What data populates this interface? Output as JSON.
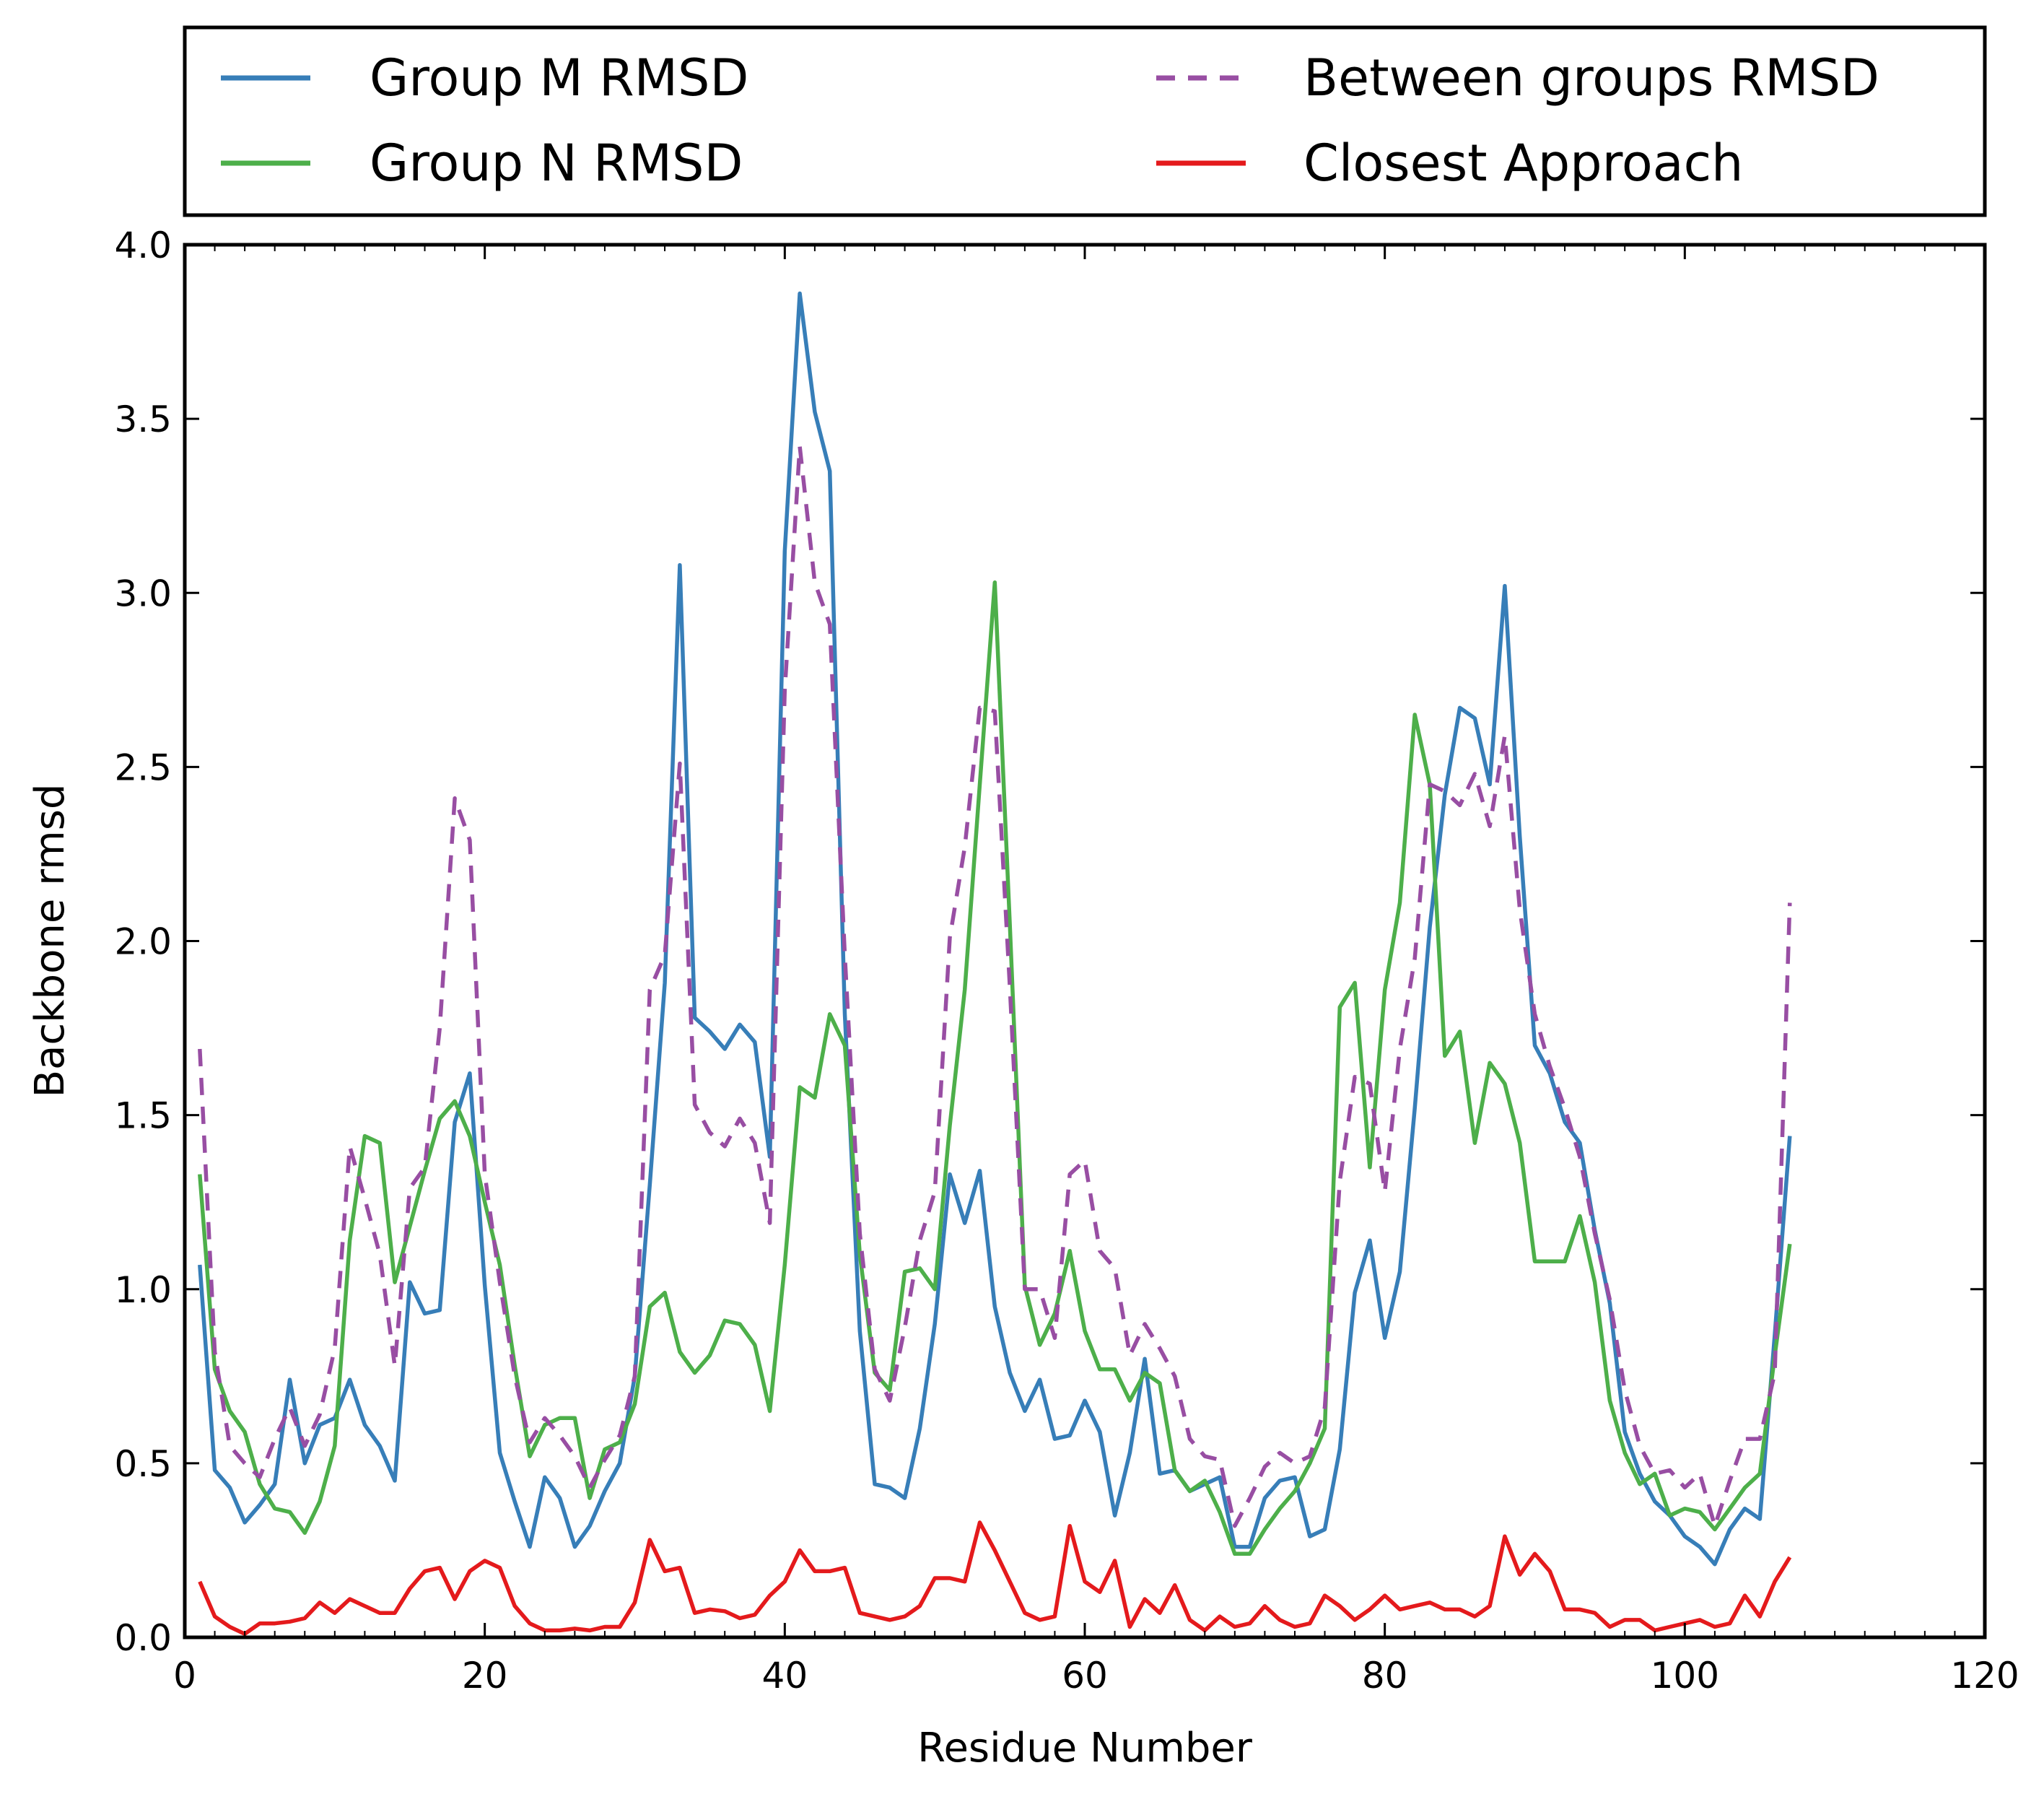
{
  "chart_data": {
    "type": "line",
    "title": "",
    "xlabel": "Residue Number",
    "ylabel": "Backbone rmsd",
    "xlim": [
      0,
      120
    ],
    "ylim": [
      0,
      4.0
    ],
    "x_ticks": [
      0,
      20,
      40,
      60,
      80,
      100,
      120
    ],
    "x_tick_labels": [
      "0",
      "20",
      "40",
      "60",
      "80",
      "100",
      "120"
    ],
    "y_ticks": [
      0,
      0.5,
      1.0,
      1.5,
      2.0,
      2.5,
      3.0,
      3.5,
      4.0
    ],
    "y_tick_labels": [
      "0.0",
      "0.5",
      "1.0",
      "1.5",
      "2.0",
      "2.5",
      "3.0",
      "3.5",
      "4.0"
    ],
    "x_minor_step": 2,
    "grid": false,
    "legend_position": "top (above plot, two columns)",
    "x": [
      1,
      2,
      3,
      4,
      5,
      6,
      7,
      8,
      9,
      10,
      11,
      12,
      13,
      14,
      15,
      16,
      17,
      18,
      19,
      20,
      21,
      22,
      23,
      24,
      25,
      26,
      27,
      28,
      29,
      30,
      31,
      32,
      33,
      34,
      35,
      36,
      37,
      38,
      39,
      40,
      41,
      42,
      43,
      44,
      45,
      46,
      47,
      48,
      49,
      50,
      51,
      52,
      53,
      54,
      55,
      56,
      57,
      58,
      59,
      60,
      61,
      62,
      63,
      64,
      65,
      66,
      67,
      68,
      69,
      70,
      71,
      72,
      73,
      74,
      75,
      76,
      77,
      78,
      79,
      80,
      81,
      82,
      83,
      84,
      85,
      86,
      87,
      88,
      89,
      90,
      91,
      92,
      93,
      94,
      95,
      96,
      97,
      98,
      99,
      100,
      101,
      102,
      103,
      104,
      105,
      106,
      107
    ],
    "series": [
      {
        "name": "Group M RMSD",
        "color": "#377eb8",
        "style": "solid",
        "values": [
          1.07,
          0.48,
          0.43,
          0.33,
          0.38,
          0.44,
          0.74,
          0.5,
          0.61,
          0.63,
          0.74,
          0.61,
          0.55,
          0.45,
          1.02,
          0.93,
          0.94,
          1.48,
          1.62,
          1.01,
          0.53,
          0.39,
          0.26,
          0.46,
          0.4,
          0.26,
          0.32,
          0.42,
          0.5,
          0.75,
          1.3,
          1.88,
          3.08,
          1.78,
          1.74,
          1.69,
          1.76,
          1.71,
          1.38,
          3.12,
          3.86,
          3.52,
          3.35,
          1.79,
          0.88,
          0.44,
          0.43,
          0.4,
          0.6,
          0.9,
          1.33,
          1.19,
          1.34,
          0.95,
          0.76,
          0.65,
          0.74,
          0.57,
          0.58,
          0.68,
          0.59,
          0.35,
          0.53,
          0.8,
          0.47,
          0.48,
          0.42,
          0.44,
          0.46,
          0.26,
          0.26,
          0.4,
          0.45,
          0.46,
          0.29,
          0.31,
          0.54,
          0.99,
          1.14,
          0.86,
          1.05,
          1.52,
          2.04,
          2.42,
          2.67,
          2.64,
          2.45,
          3.02,
          2.3,
          1.7,
          1.62,
          1.48,
          1.42,
          1.17,
          0.96,
          0.59,
          0.47,
          0.39,
          0.35,
          0.29,
          0.26,
          0.21,
          0.31,
          0.37,
          0.34,
          0.87,
          1.44
        ]
      },
      {
        "name": "Group N RMSD",
        "color": "#4daf4a",
        "style": "solid",
        "values": [
          1.33,
          0.77,
          0.65,
          0.59,
          0.44,
          0.37,
          0.36,
          0.3,
          0.39,
          0.55,
          1.14,
          1.44,
          1.42,
          1.02,
          1.18,
          1.34,
          1.49,
          1.54,
          1.44,
          1.25,
          1.07,
          0.78,
          0.52,
          0.61,
          0.63,
          0.63,
          0.4,
          0.54,
          0.56,
          0.67,
          0.95,
          0.99,
          0.82,
          0.76,
          0.81,
          0.91,
          0.9,
          0.84,
          0.65,
          1.07,
          1.58,
          1.55,
          1.79,
          1.7,
          1.1,
          0.76,
          0.71,
          1.05,
          1.06,
          1.0,
          1.47,
          1.86,
          2.45,
          3.03,
          2.05,
          1.01,
          0.84,
          0.93,
          1.11,
          0.88,
          0.77,
          0.77,
          0.68,
          0.76,
          0.73,
          0.48,
          0.42,
          0.45,
          0.36,
          0.24,
          0.24,
          0.31,
          0.37,
          0.42,
          0.5,
          0.6,
          1.81,
          1.88,
          1.35,
          1.86,
          2.11,
          2.65,
          2.45,
          1.67,
          1.74,
          1.42,
          1.65,
          1.59,
          1.42,
          1.08,
          1.08,
          1.08,
          1.21,
          1.02,
          0.68,
          0.53,
          0.44,
          0.47,
          0.35,
          0.37,
          0.36,
          0.31,
          0.37,
          0.43,
          0.47,
          0.81,
          1.13
        ]
      },
      {
        "name": "Between groups RMSD",
        "color": "#984ea3",
        "style": "dashed",
        "values": [
          1.69,
          0.82,
          0.55,
          0.5,
          0.46,
          0.57,
          0.66,
          0.55,
          0.64,
          0.83,
          1.41,
          1.26,
          1.1,
          0.78,
          1.29,
          1.35,
          1.75,
          2.41,
          2.29,
          1.33,
          1.02,
          0.75,
          0.56,
          0.63,
          0.58,
          0.52,
          0.43,
          0.51,
          0.58,
          0.75,
          1.86,
          1.96,
          2.51,
          1.53,
          1.45,
          1.41,
          1.49,
          1.42,
          1.19,
          2.72,
          3.42,
          3.03,
          2.91,
          1.96,
          1.16,
          0.77,
          0.68,
          0.89,
          1.14,
          1.28,
          2.01,
          2.27,
          2.67,
          2.66,
          1.87,
          1.0,
          1.0,
          0.86,
          1.33,
          1.37,
          1.11,
          1.06,
          0.81,
          0.9,
          0.83,
          0.75,
          0.57,
          0.52,
          0.51,
          0.32,
          0.4,
          0.49,
          0.53,
          0.5,
          0.52,
          0.66,
          1.31,
          1.61,
          1.59,
          1.28,
          1.69,
          1.95,
          2.45,
          2.43,
          2.39,
          2.48,
          2.33,
          2.59,
          2.09,
          1.79,
          1.64,
          1.52,
          1.38,
          1.16,
          0.97,
          0.71,
          0.55,
          0.47,
          0.48,
          0.43,
          0.47,
          0.32,
          0.45,
          0.57,
          0.57,
          0.76,
          2.11
        ]
      },
      {
        "name": "Closest Approach",
        "color": "#e41a1c",
        "style": "solid",
        "values": [
          0.16,
          0.06,
          0.03,
          0.01,
          0.04,
          0.04,
          0.045,
          0.055,
          0.1,
          0.07,
          0.11,
          0.09,
          0.07,
          0.07,
          0.14,
          0.19,
          0.2,
          0.11,
          0.19,
          0.22,
          0.2,
          0.09,
          0.04,
          0.02,
          0.02,
          0.025,
          0.02,
          0.03,
          0.03,
          0.1,
          0.28,
          0.19,
          0.2,
          0.07,
          0.08,
          0.075,
          0.055,
          0.065,
          0.12,
          0.16,
          0.25,
          0.19,
          0.19,
          0.2,
          0.07,
          0.06,
          0.05,
          0.06,
          0.09,
          0.17,
          0.17,
          0.16,
          0.33,
          0.25,
          0.16,
          0.07,
          0.05,
          0.06,
          0.32,
          0.16,
          0.13,
          0.22,
          0.03,
          0.11,
          0.07,
          0.15,
          0.05,
          0.02,
          0.06,
          0.03,
          0.04,
          0.09,
          0.05,
          0.03,
          0.04,
          0.12,
          0.09,
          0.05,
          0.08,
          0.12,
          0.08,
          0.09,
          0.1,
          0.08,
          0.08,
          0.06,
          0.09,
          0.29,
          0.18,
          0.24,
          0.19,
          0.08,
          0.08,
          0.07,
          0.03,
          0.05,
          0.05,
          0.02,
          0.03,
          0.04,
          0.05,
          0.03,
          0.04,
          0.12,
          0.06,
          0.16,
          0.23
        ]
      }
    ]
  }
}
